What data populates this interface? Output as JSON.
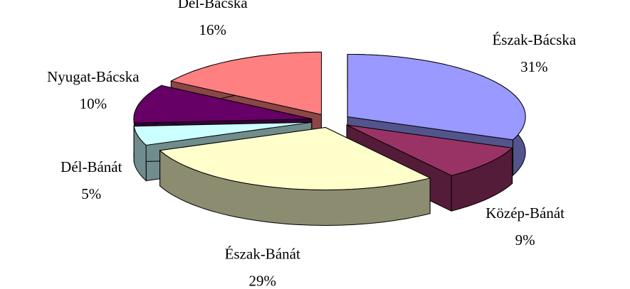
{
  "chart_data": {
    "type": "pie3d",
    "categories": [
      "Észak-Bácska",
      "Közép-Bánát",
      "Észak-Bánát",
      "Dél-Bánát",
      "Nyugat-Bácska",
      "Dél-Bácska"
    ],
    "values": [
      31,
      9,
      29,
      5,
      10,
      16
    ],
    "value_labels": [
      "31%",
      "9%",
      "29%",
      "5%",
      "10%",
      "16%"
    ],
    "colors": [
      "#9999ff",
      "#993366",
      "#ffffcc",
      "#ccffff",
      "#660066",
      "#ff8080"
    ]
  }
}
